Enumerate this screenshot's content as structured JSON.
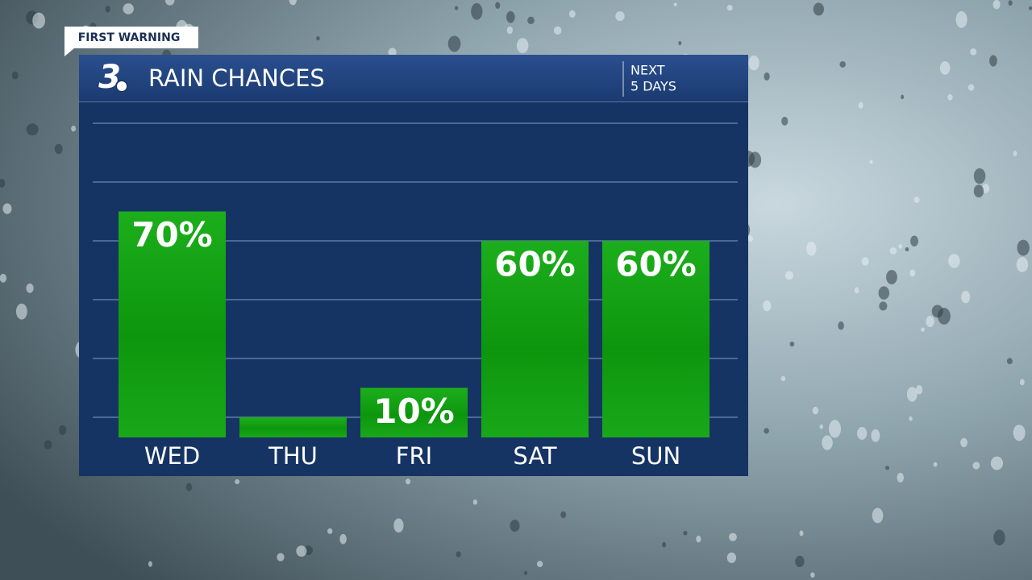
{
  "chart_data": {
    "type": "bar",
    "badge": "FIRST WARNING",
    "logo": "3",
    "title": "RAIN CHANCES",
    "subtitle": [
      "NEXT",
      "5 DAYS"
    ],
    "categories": [
      "WED",
      "THU",
      "FRI",
      "SAT",
      "SUN"
    ],
    "values": [
      70,
      0,
      10,
      60,
      60
    ],
    "value_labels": [
      "70%",
      null,
      "10%",
      "60%",
      "60%"
    ],
    "color": "#14a514",
    "ylim": [
      0,
      100
    ],
    "yticks": [
      0,
      20,
      40,
      60,
      80,
      100
    ],
    "grid": true
  }
}
